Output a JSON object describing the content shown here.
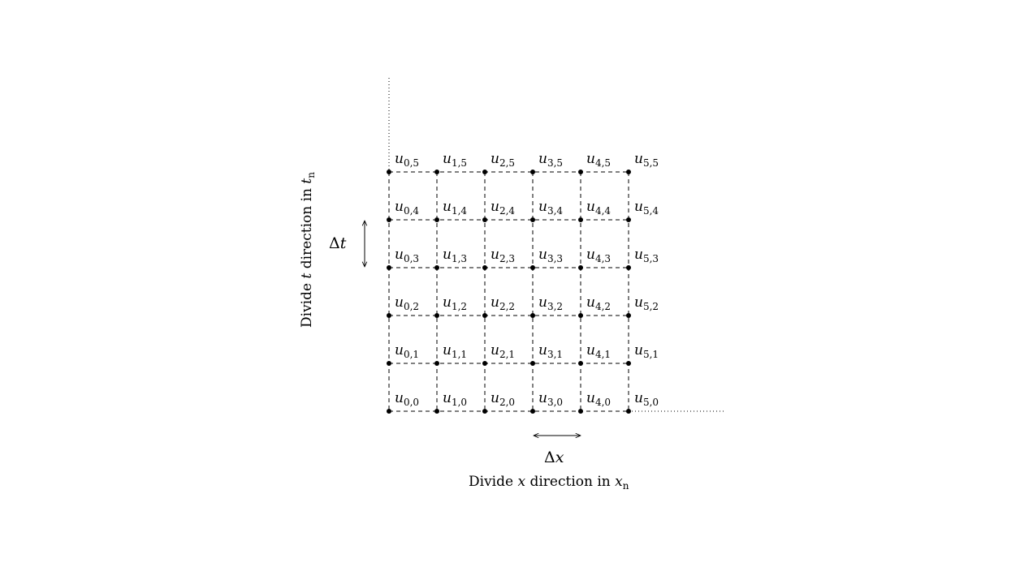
{
  "grid": {
    "n_x": 6,
    "n_t": 6,
    "node_symbol": "u",
    "line_color": "#000000"
  },
  "delta_t": {
    "symbol": "Δ",
    "var": "t"
  },
  "delta_x": {
    "symbol": "Δ",
    "var": "x"
  },
  "axis_t_label": {
    "prefix": "Divide ",
    "var": "t",
    "middle": " direction in ",
    "tail_var": "t",
    "tail_sub": "n"
  },
  "axis_x_label": {
    "prefix": "Divide ",
    "var": "x",
    "middle": " direction in ",
    "tail_var": "x",
    "tail_sub": "n"
  }
}
